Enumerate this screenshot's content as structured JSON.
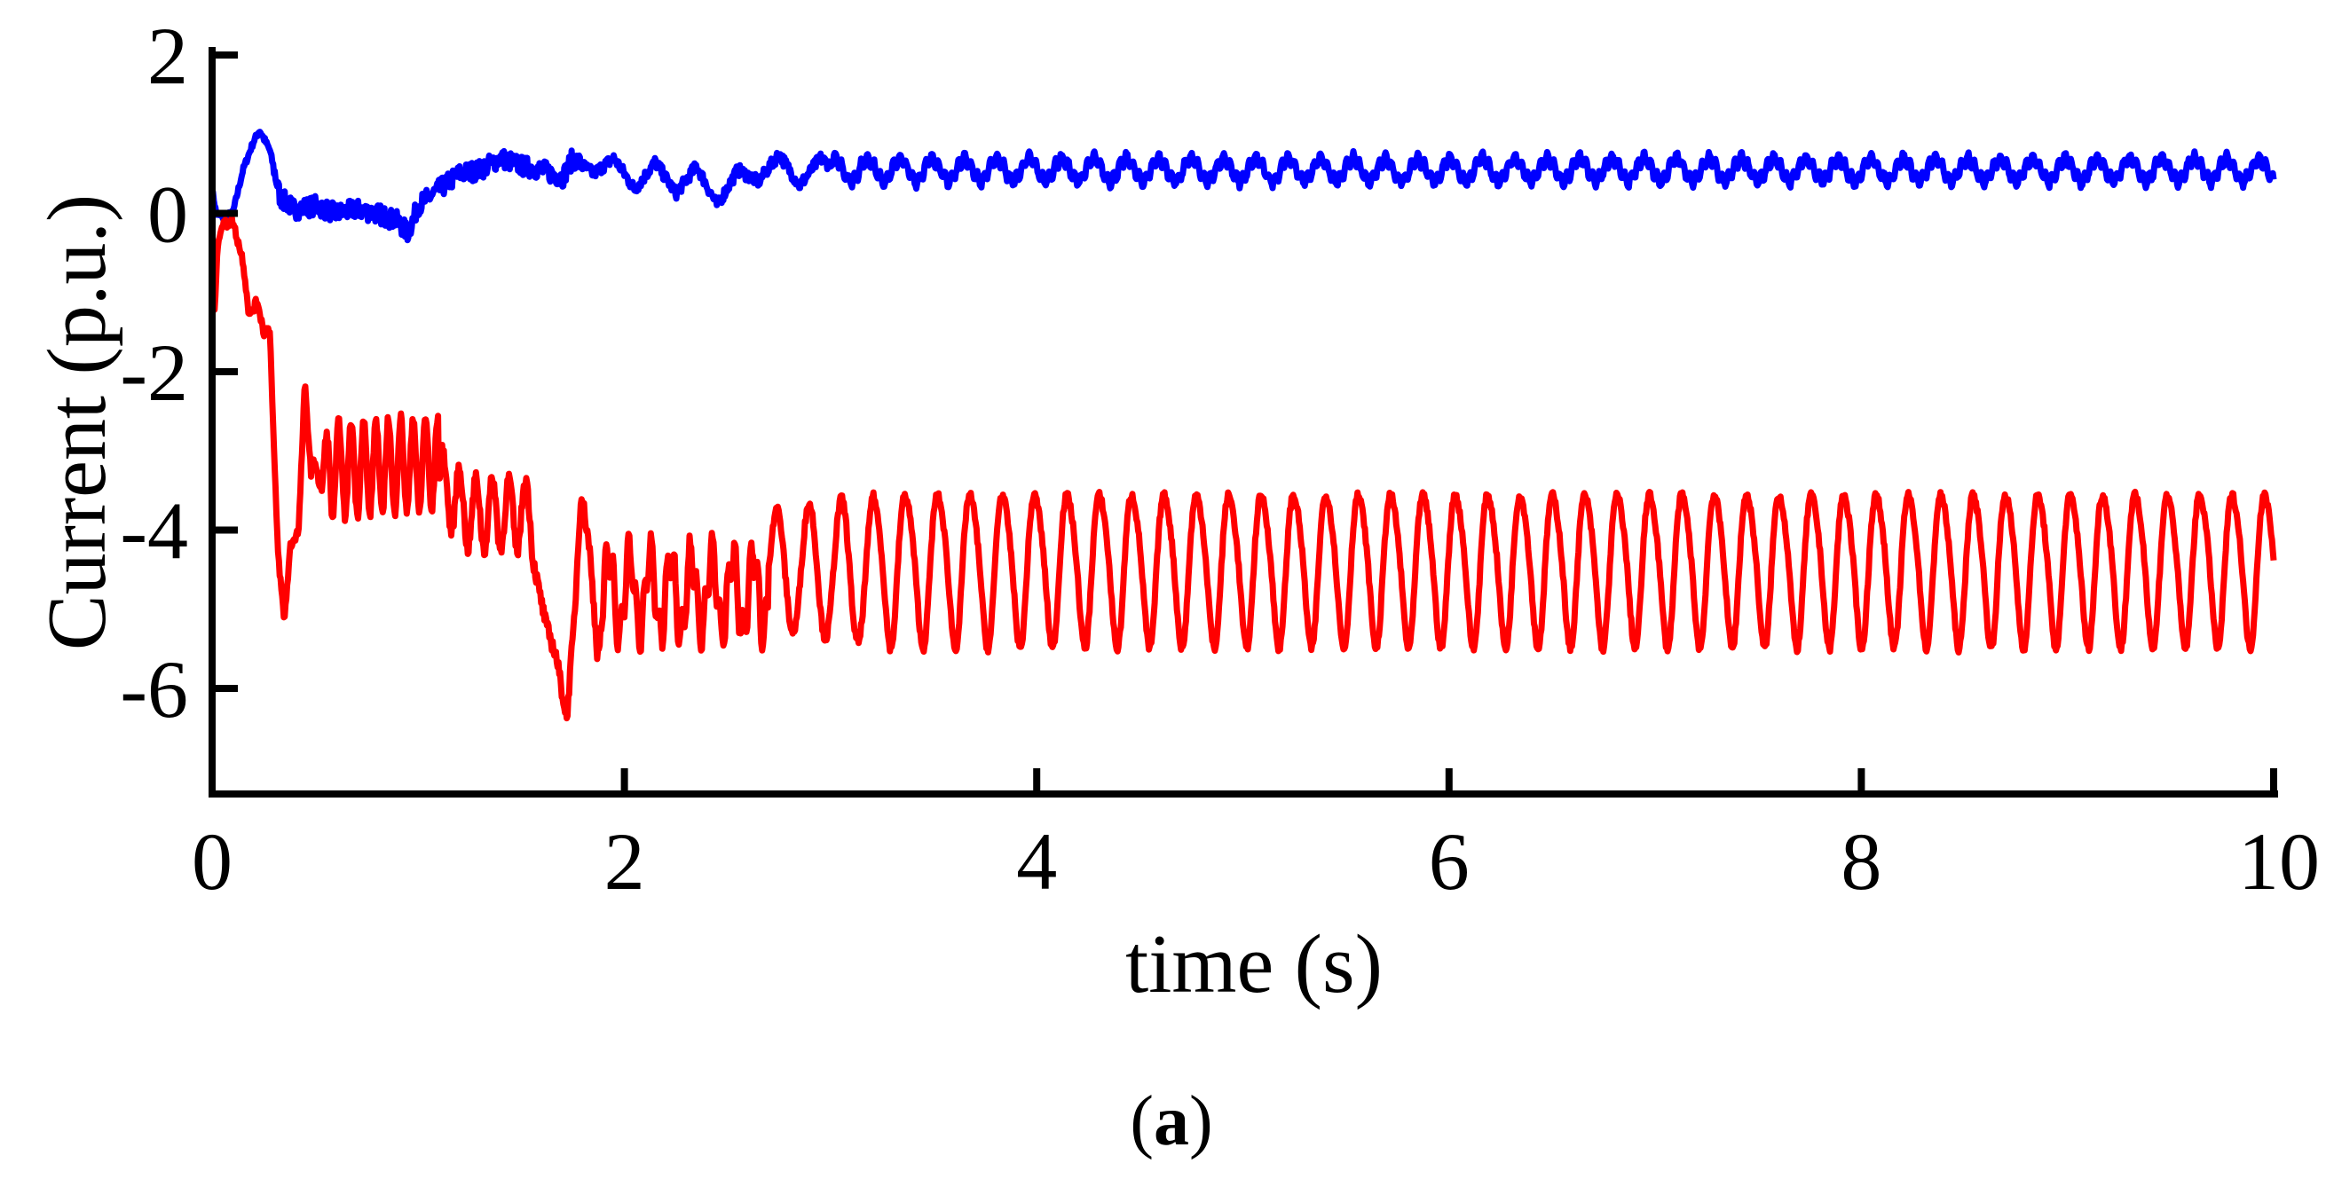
{
  "figure": {
    "caption_open": "(",
    "caption_letter": "a",
    "caption_close": ")"
  },
  "chart_data": {
    "type": "line",
    "title": "",
    "xlabel": "time (s)",
    "ylabel": "Current (p.u.)",
    "xlim": [
      0,
      10
    ],
    "ylim": [
      -7.35,
      2
    ],
    "x_ticks": [
      0,
      2,
      4,
      6,
      8,
      10
    ],
    "x_tick_labels": [
      "0",
      "2",
      "4",
      "6",
      "8",
      "10"
    ],
    "y_ticks": [
      2,
      0,
      -2,
      -4,
      -6
    ],
    "y_tick_labels": [
      "2",
      "0",
      "-2",
      "-4",
      "-6"
    ],
    "grid": false,
    "legend": null,
    "series": [
      {
        "name": "blue-current",
        "color": "#0000ff",
        "keypoints": {
          "t": [
            0,
            0.02,
            0.05,
            0.1,
            0.15,
            0.2,
            0.23,
            0.28,
            0.33,
            0.4,
            0.5,
            0.6,
            0.7,
            0.8,
            0.9,
            0.95,
            1.0,
            1.1,
            1.2,
            1.3,
            1.4,
            1.5,
            1.6,
            1.7,
            1.75,
            1.85,
            1.95,
            2.05,
            2.15,
            2.25,
            2.35,
            2.45,
            2.55,
            2.65,
            2.75,
            2.85,
            2.95,
            3.0
          ],
          "v": [
            0.3,
            0.0,
            -0.05,
            0.0,
            0.55,
            0.9,
            1.05,
            0.8,
            0.2,
            0.05,
            0.1,
            0.0,
            0.05,
            0.0,
            -0.1,
            -0.25,
            0.1,
            0.3,
            0.5,
            0.55,
            0.7,
            0.6,
            0.55,
            0.45,
            0.7,
            0.5,
            0.7,
            0.3,
            0.65,
            0.25,
            0.6,
            0.1,
            0.55,
            0.4,
            0.75,
            0.35,
            0.7,
            0.6
          ]
        },
        "noise_band": 0.25,
        "steady_state": {
          "from_t": 3.0,
          "mean": 0.55,
          "amplitude": 0.14,
          "period_s": 0.157,
          "ripple_amplitude": 0.07
        }
      },
      {
        "name": "red-current",
        "color": "#ff0000",
        "keypoints": {
          "t": [
            0,
            0.01,
            0.03,
            0.05,
            0.1,
            0.15,
            0.18,
            0.22,
            0.25,
            0.28,
            0.3,
            0.32,
            0.35,
            0.38,
            0.42,
            0.45,
            0.48
          ],
          "v": [
            -0.1,
            -1.3,
            -0.3,
            -0.15,
            -0.1,
            -0.6,
            -1.3,
            -1.1,
            -1.5,
            -1.45,
            -3.0,
            -4.3,
            -5.15,
            -4.2,
            -4.0,
            -2.15,
            -3.3
          ]
        },
        "transient_bands": [
          {
            "from_t": 0.48,
            "to_t": 1.1,
            "center": -3.25,
            "amplitude": 0.6,
            "period_s": 0.06,
            "peak": -2.45
          },
          {
            "from_t": 1.1,
            "to_t": 1.55,
            "center": -4.2,
            "amplitude": 0.45,
            "period_s": 0.08
          },
          {
            "from_t": 1.55,
            "to_t": 1.9,
            "min": -6.4,
            "min_t": 1.72,
            "spike": -3.5,
            "spike_t": 1.79
          },
          {
            "from_t": 1.9,
            "to_t": 2.7,
            "center": -4.8,
            "amplitude": 0.5,
            "period_s": 0.1
          },
          {
            "from_t": 2.7,
            "to_t": 3.2,
            "center": -4.5,
            "amplitude": 0.75,
            "period_s": 0.157
          }
        ],
        "steady_state": {
          "from_t": 3.2,
          "mean": -4.45,
          "amplitude": 0.95,
          "period_s": 0.157,
          "max": -3.45,
          "min": -5.45,
          "end_value": -3.6
        }
      }
    ]
  }
}
